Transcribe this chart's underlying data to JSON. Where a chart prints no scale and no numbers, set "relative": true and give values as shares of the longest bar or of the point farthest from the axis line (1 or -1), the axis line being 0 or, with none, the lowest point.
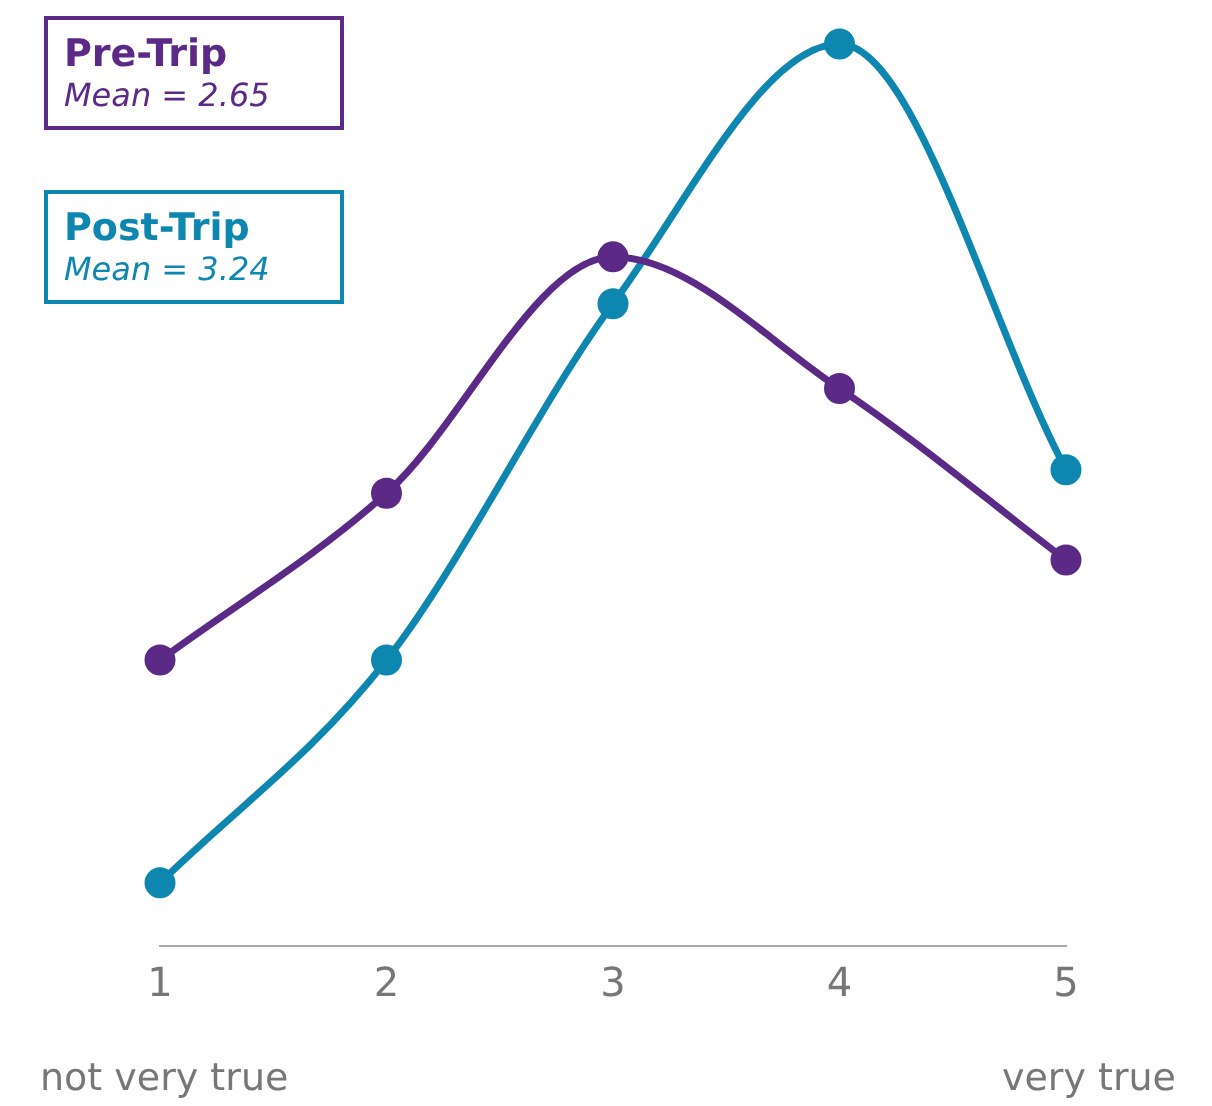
{
  "chart_data": {
    "type": "line",
    "relative": true,
    "categories": [
      "1",
      "2",
      "3",
      "4",
      "5"
    ],
    "series": [
      {
        "name": "Pre-Trip",
        "color": "#5b2a86",
        "values": [
          0.317,
          0.502,
          0.764,
          0.618,
          0.428
        ]
      },
      {
        "name": "Post-Trip",
        "color": "#0e87b0",
        "values": [
          0.07,
          0.317,
          0.712,
          1,
          0.528
        ]
      }
    ],
    "annotations": [
      "Mean = 2.65",
      "Mean = 3.24",
      "not very true",
      "very true"
    ],
    "legend": "top left",
    "marker": "circle",
    "line_style": "solid",
    "grid": false
  }
}
